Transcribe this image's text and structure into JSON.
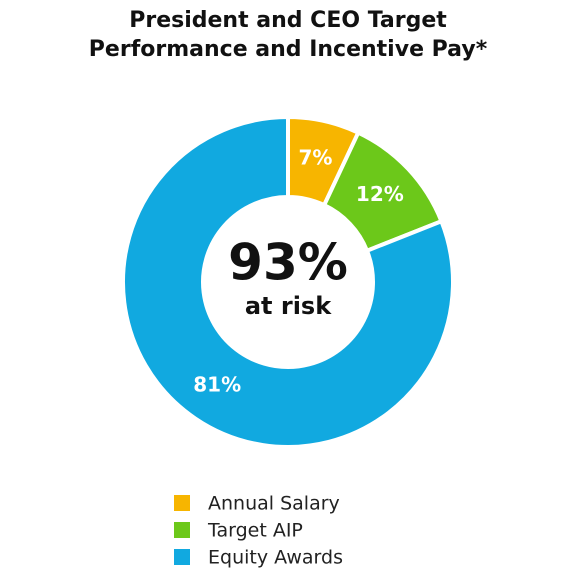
{
  "chart_data": {
    "type": "pie",
    "title": "President and CEO Target Performance and Incentive Pay*",
    "center_label": "93%",
    "center_sublabel": "at risk",
    "categories": [
      "Annual Salary",
      "Target AIP",
      "Equity Awards"
    ],
    "values": [
      7,
      12,
      81
    ],
    "value_labels": [
      "7%",
      "12%",
      "81%"
    ],
    "colors": [
      "#f7b500",
      "#6cc81a",
      "#11a9e0"
    ],
    "donut": true,
    "legend": "bottom"
  }
}
